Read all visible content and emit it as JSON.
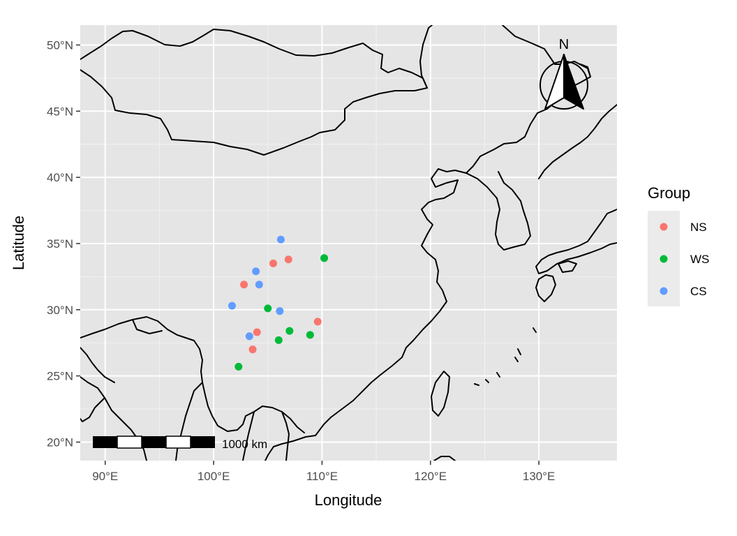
{
  "chart_data": {
    "type": "scatter",
    "subtype": "map",
    "xlabel": "Longitude",
    "ylabel": "Latitude",
    "xlim": [
      87.7,
      137.2
    ],
    "ylim": [
      18.6,
      51.5
    ],
    "x_ticks": [
      {
        "value": 90,
        "label": "90°E"
      },
      {
        "value": 100,
        "label": "100°E"
      },
      {
        "value": 110,
        "label": "110°E"
      },
      {
        "value": 120,
        "label": "120°E"
      },
      {
        "value": 130,
        "label": "130°E"
      }
    ],
    "y_ticks": [
      {
        "value": 20,
        "label": "20°N"
      },
      {
        "value": 25,
        "label": "25°N"
      },
      {
        "value": 30,
        "label": "30°N"
      },
      {
        "value": 35,
        "label": "35°N"
      },
      {
        "value": 40,
        "label": "40°N"
      },
      {
        "value": 45,
        "label": "45°N"
      },
      {
        "value": 50,
        "label": "50°N"
      }
    ],
    "grid": true,
    "panel_background": "#e5e5e5",
    "legend": {
      "title": "Group",
      "placement": "right"
    },
    "series": [
      {
        "name": "NS",
        "color": "#f8766d",
        "points": [
          [
            102.8,
            31.9
          ],
          [
            105.5,
            33.5
          ],
          [
            106.9,
            33.8
          ],
          [
            104.0,
            28.3
          ],
          [
            103.6,
            27.0
          ],
          [
            109.6,
            29.1
          ]
        ]
      },
      {
        "name": "WS",
        "color": "#00ba38",
        "points": [
          [
            110.2,
            33.9
          ],
          [
            105.0,
            30.1
          ],
          [
            107.0,
            28.4
          ],
          [
            106.0,
            27.7
          ],
          [
            108.9,
            28.1
          ],
          [
            102.3,
            25.7
          ]
        ]
      },
      {
        "name": "CS",
        "color": "#619cff",
        "points": [
          [
            106.2,
            35.3
          ],
          [
            103.9,
            32.9
          ],
          [
            104.2,
            31.9
          ],
          [
            101.7,
            30.3
          ],
          [
            106.1,
            29.9
          ],
          [
            103.3,
            28.0
          ]
        ]
      }
    ],
    "scale_bar": {
      "label": "1000 km"
    },
    "north_arrow": {
      "label": "N"
    }
  }
}
